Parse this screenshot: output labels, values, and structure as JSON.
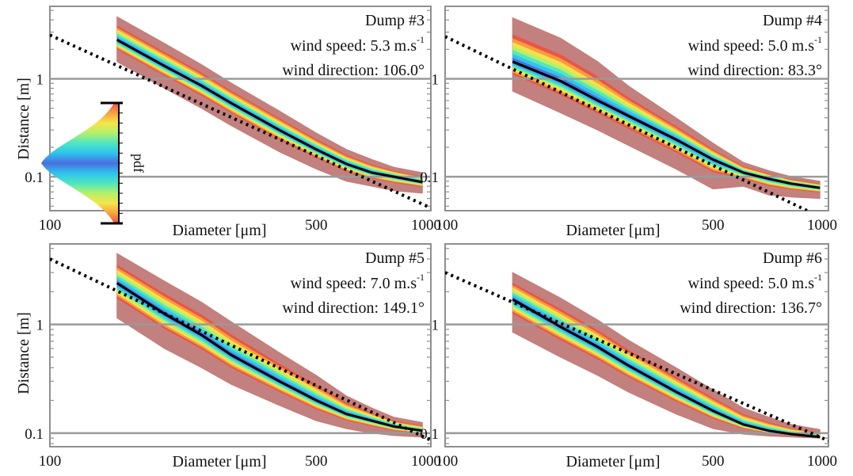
{
  "figure": {
    "y_axis_label": "Distance [m]",
    "x_axis_label": "Diameter [μm]",
    "colorbar_label": "pdf",
    "colors": {
      "frame": "#8f8f8f",
      "gridline": "#9a9a9a",
      "envelope_outer": "#c97a75",
      "envelope_fill": "#b76a68",
      "median": "#000000",
      "fit_line": "#000000"
    },
    "colormap": [
      "#4a6fe0",
      "#2ec3ee",
      "#4fe6c0",
      "#b4f06a",
      "#f4e64a",
      "#f8a040",
      "#ec5242"
    ]
  },
  "chart_data": [
    {
      "type": "line",
      "id": "dump3",
      "title": "Dump #3",
      "annotations": [
        "wind speed: 5.3 m.s",
        "wind direction: 106.0°"
      ],
      "superscript": "-1",
      "xscale": "log",
      "yscale": "log",
      "xlim": [
        100,
        1000
      ],
      "ylim": [
        0.045,
        5.5
      ],
      "xticks": [
        100,
        500,
        1000
      ],
      "xticklabels": [
        "100",
        "500",
        "1000"
      ],
      "yticks": [
        0.1,
        1
      ],
      "yticklabels": [
        "0.1",
        "1"
      ],
      "grid": "horizontal at 0.1 and 1",
      "x": [
        150,
        200,
        250,
        300,
        400,
        500,
        600,
        700,
        800,
        950
      ],
      "median": [
        2.5,
        1.35,
        0.85,
        0.56,
        0.3,
        0.19,
        0.135,
        0.11,
        0.1,
        0.088
      ],
      "envelope_upper": [
        4.3,
        2.3,
        1.4,
        0.9,
        0.47,
        0.28,
        0.19,
        0.15,
        0.125,
        0.11
      ],
      "envelope_lower": [
        1.5,
        0.8,
        0.5,
        0.33,
        0.18,
        0.12,
        0.09,
        0.08,
        0.072,
        0.068
      ],
      "fit_line": {
        "x": [
          100,
          1000
        ],
        "y": [
          2.8,
          0.048
        ]
      }
    },
    {
      "type": "line",
      "id": "dump4",
      "title": "Dump #4",
      "annotations": [
        "wind speed: 5.0 m.s",
        "wind direction: 83.3°"
      ],
      "superscript": "-1",
      "xscale": "log",
      "yscale": "log",
      "xlim": [
        100,
        1000
      ],
      "ylim": [
        0.045,
        5.5
      ],
      "xticks": [
        100,
        500,
        1000
      ],
      "xticklabels": [
        "100",
        "500",
        "1000"
      ],
      "yticks": [
        0.1,
        1
      ],
      "yticklabels": [
        "0.1",
        "1"
      ],
      "grid": "horizontal at 0.1 and 1",
      "x": [
        150,
        200,
        250,
        300,
        400,
        500,
        600,
        700,
        800,
        950
      ],
      "median": [
        1.5,
        0.95,
        0.6,
        0.42,
        0.24,
        0.15,
        0.11,
        0.095,
        0.085,
        0.077
      ],
      "envelope_upper": [
        4.2,
        2.6,
        1.5,
        0.85,
        0.4,
        0.22,
        0.14,
        0.115,
        0.1,
        0.09
      ],
      "envelope_lower": [
        0.75,
        0.45,
        0.3,
        0.21,
        0.12,
        0.075,
        0.08,
        0.065,
        0.062,
        0.06
      ],
      "fit_line": {
        "x": [
          100,
          880
        ],
        "y": [
          2.7,
          0.045
        ]
      }
    },
    {
      "type": "line",
      "id": "dump5",
      "title": "Dump #5",
      "annotations": [
        "wind speed: 7.0 m.s",
        "wind direction: 149.1°"
      ],
      "superscript": "-1",
      "xscale": "log",
      "yscale": "log",
      "xlim": [
        100,
        1000
      ],
      "ylim": [
        0.075,
        5.5
      ],
      "xticks": [
        100,
        500,
        1000
      ],
      "xticklabels": [
        "100",
        "500",
        "1000"
      ],
      "yticks": [
        0.1,
        1
      ],
      "yticklabels": [
        "0.1",
        "1"
      ],
      "grid": "horizontal at 0.1 and 1",
      "x": [
        150,
        200,
        250,
        300,
        400,
        500,
        600,
        700,
        800,
        950
      ],
      "median": [
        2.4,
        1.25,
        0.8,
        0.52,
        0.3,
        0.2,
        0.15,
        0.13,
        0.115,
        0.105
      ],
      "envelope_upper": [
        4.5,
        2.5,
        1.6,
        1.05,
        0.55,
        0.34,
        0.22,
        0.17,
        0.14,
        0.125
      ],
      "envelope_lower": [
        1.15,
        0.6,
        0.4,
        0.28,
        0.18,
        0.13,
        0.11,
        0.1,
        0.095,
        0.092
      ],
      "fit_line": {
        "x": [
          100,
          1000
        ],
        "y": [
          4.0,
          0.086
        ]
      }
    },
    {
      "type": "line",
      "id": "dump6",
      "title": "Dump #6",
      "annotations": [
        "wind speed: 5.0 m.s",
        "wind direction: 136.7°"
      ],
      "superscript": "-1",
      "xscale": "log",
      "yscale": "log",
      "xlim": [
        100,
        1000
      ],
      "ylim": [
        0.075,
        5.5
      ],
      "xticks": [
        100,
        500,
        1000
      ],
      "xticklabels": [
        "100",
        "500",
        "1000"
      ],
      "yticks": [
        0.1,
        1
      ],
      "yticklabels": [
        "0.1",
        "1"
      ],
      "grid": "horizontal at 0.1 and 1",
      "x": [
        150,
        200,
        250,
        300,
        400,
        500,
        600,
        700,
        800,
        950
      ],
      "median": [
        1.7,
        0.95,
        0.62,
        0.42,
        0.24,
        0.16,
        0.12,
        0.105,
        0.098,
        0.092
      ],
      "envelope_upper": [
        3.0,
        1.75,
        1.1,
        0.72,
        0.4,
        0.25,
        0.17,
        0.14,
        0.12,
        0.108
      ],
      "envelope_lower": [
        0.85,
        0.5,
        0.34,
        0.24,
        0.15,
        0.11,
        0.098,
        0.094,
        0.092,
        0.09
      ],
      "fit_line": {
        "x": [
          100,
          1000
        ],
        "y": [
          3.0,
          0.085
        ]
      }
    }
  ]
}
